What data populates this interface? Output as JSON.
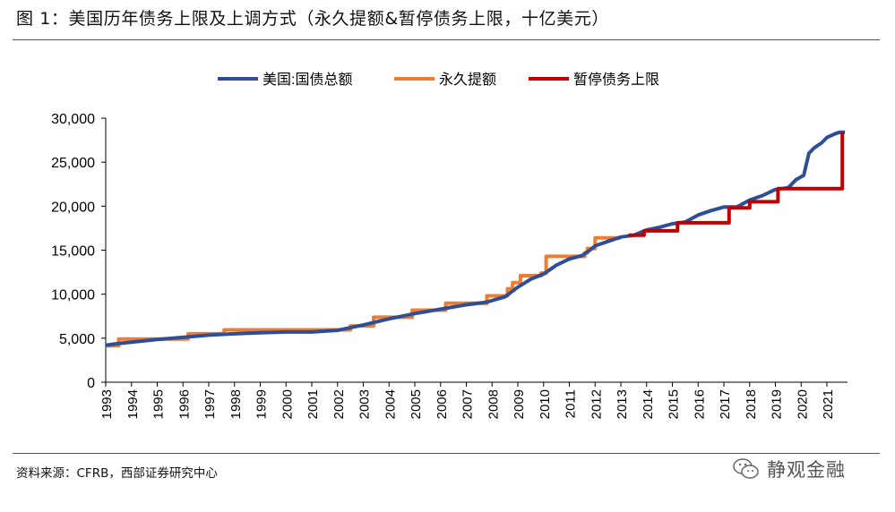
{
  "header": {
    "title": "图 1：美国历年债务上限及上调方式（永久提额&暂停债务上限，十亿美元）"
  },
  "footer": {
    "source": "资料来源：CFRB，西部证券研究中心"
  },
  "watermark": {
    "text": "静观金融",
    "icon": "wechat-bubbles-icon"
  },
  "colors": {
    "debt": "#2E4F95",
    "permanent": "#ED7D31",
    "suspend": "#C00000",
    "axis": "#000000"
  },
  "chart_data": {
    "type": "line",
    "xlabel": "",
    "ylabel": "",
    "xlim": [
      1993,
      2021.8
    ],
    "ylim": [
      0,
      30000
    ],
    "y_ticks": [
      0,
      5000,
      10000,
      15000,
      20000,
      25000,
      30000
    ],
    "y_tick_labels": [
      "0",
      "5,000",
      "10,000",
      "15,000",
      "20,000",
      "25,000",
      "30,000"
    ],
    "x_ticks": [
      1993,
      1994,
      1995,
      1996,
      1997,
      1998,
      1999,
      2000,
      2001,
      2002,
      2003,
      2004,
      2005,
      2006,
      2007,
      2008,
      2009,
      2010,
      2011,
      2012,
      2013,
      2014,
      2015,
      2016,
      2017,
      2018,
      2019,
      2020,
      2021
    ],
    "x_tick_labels": [
      "1993",
      "1994",
      "1995",
      "1996",
      "1997",
      "1998",
      "1999",
      "2000",
      "2001",
      "2002",
      "2003",
      "2004",
      "2005",
      "2006",
      "2007",
      "2008",
      "2009",
      "2010",
      "2011",
      "2012",
      "2013",
      "2014",
      "2015",
      "2016",
      "2017",
      "2018",
      "2019",
      "2020",
      "2021"
    ],
    "legend_position": "top",
    "series": [
      {
        "name": "美国:国债总额",
        "key": "debt",
        "points": [
          [
            1993.0,
            4200
          ],
          [
            1993.5,
            4400
          ],
          [
            1994.0,
            4550
          ],
          [
            1995.0,
            4850
          ],
          [
            1996.0,
            5100
          ],
          [
            1997.0,
            5350
          ],
          [
            1998.0,
            5500
          ],
          [
            1999.0,
            5620
          ],
          [
            2000.0,
            5700
          ],
          [
            2001.0,
            5700
          ],
          [
            2002.0,
            5900
          ],
          [
            2003.0,
            6500
          ],
          [
            2004.0,
            7200
          ],
          [
            2005.0,
            7800
          ],
          [
            2006.0,
            8300
          ],
          [
            2007.0,
            8800
          ],
          [
            2007.8,
            9100
          ],
          [
            2008.5,
            9700
          ],
          [
            2009.0,
            10800
          ],
          [
            2009.5,
            11700
          ],
          [
            2010.0,
            12300
          ],
          [
            2010.5,
            13300
          ],
          [
            2011.0,
            14000
          ],
          [
            2011.5,
            14400
          ],
          [
            2011.8,
            15000
          ],
          [
            2012.0,
            15500
          ],
          [
            2012.5,
            16000
          ],
          [
            2013.0,
            16500
          ],
          [
            2013.5,
            16700
          ],
          [
            2014.0,
            17300
          ],
          [
            2014.5,
            17600
          ],
          [
            2015.0,
            18000
          ],
          [
            2015.5,
            18200
          ],
          [
            2016.0,
            19000
          ],
          [
            2016.5,
            19500
          ],
          [
            2017.0,
            19900
          ],
          [
            2017.5,
            19900
          ],
          [
            2018.0,
            20700
          ],
          [
            2018.5,
            21200
          ],
          [
            2019.0,
            21900
          ],
          [
            2019.5,
            22100
          ],
          [
            2019.8,
            23000
          ],
          [
            2020.1,
            23500
          ],
          [
            2020.3,
            26000
          ],
          [
            2020.5,
            26600
          ],
          [
            2020.8,
            27200
          ],
          [
            2021.0,
            27800
          ],
          [
            2021.3,
            28200
          ],
          [
            2021.5,
            28400
          ],
          [
            2021.7,
            28400
          ]
        ]
      },
      {
        "name": "永久提额",
        "key": "permanent",
        "points": [
          [
            1993.0,
            4145
          ],
          [
            1993.5,
            4145
          ],
          [
            1993.5,
            4900
          ],
          [
            1996.2,
            4900
          ],
          [
            1996.2,
            5500
          ],
          [
            1997.6,
            5500
          ],
          [
            1997.6,
            5950
          ],
          [
            2002.5,
            5950
          ],
          [
            2002.5,
            6400
          ],
          [
            2003.4,
            6400
          ],
          [
            2003.4,
            7384
          ],
          [
            2004.9,
            7384
          ],
          [
            2004.9,
            8184
          ],
          [
            2006.2,
            8184
          ],
          [
            2006.2,
            8965
          ],
          [
            2007.8,
            8965
          ],
          [
            2007.8,
            9815
          ],
          [
            2008.6,
            9815
          ],
          [
            2008.6,
            10615
          ],
          [
            2008.8,
            10615
          ],
          [
            2008.8,
            11315
          ],
          [
            2009.1,
            11315
          ],
          [
            2009.1,
            12104
          ],
          [
            2009.9,
            12104
          ],
          [
            2009.9,
            12394
          ],
          [
            2010.1,
            12394
          ],
          [
            2010.1,
            14294
          ],
          [
            2011.6,
            14294
          ],
          [
            2011.6,
            14694
          ],
          [
            2011.7,
            14694
          ],
          [
            2011.7,
            15194
          ],
          [
            2012.0,
            15194
          ],
          [
            2012.0,
            16394
          ],
          [
            2013.0,
            16394
          ]
        ]
      },
      {
        "name": "暂停债务上限",
        "key": "suspend",
        "points": [
          [
            2013.3,
            16699
          ],
          [
            2013.9,
            16699
          ],
          [
            2013.9,
            17200
          ],
          [
            2015.2,
            17200
          ],
          [
            2015.2,
            18113
          ],
          [
            2017.2,
            18113
          ],
          [
            2017.2,
            19809
          ],
          [
            2018.0,
            19809
          ],
          [
            2018.0,
            20500
          ],
          [
            2019.1,
            20500
          ],
          [
            2019.1,
            21988
          ],
          [
            2021.6,
            21988
          ],
          [
            2021.6,
            28400
          ]
        ]
      }
    ]
  }
}
